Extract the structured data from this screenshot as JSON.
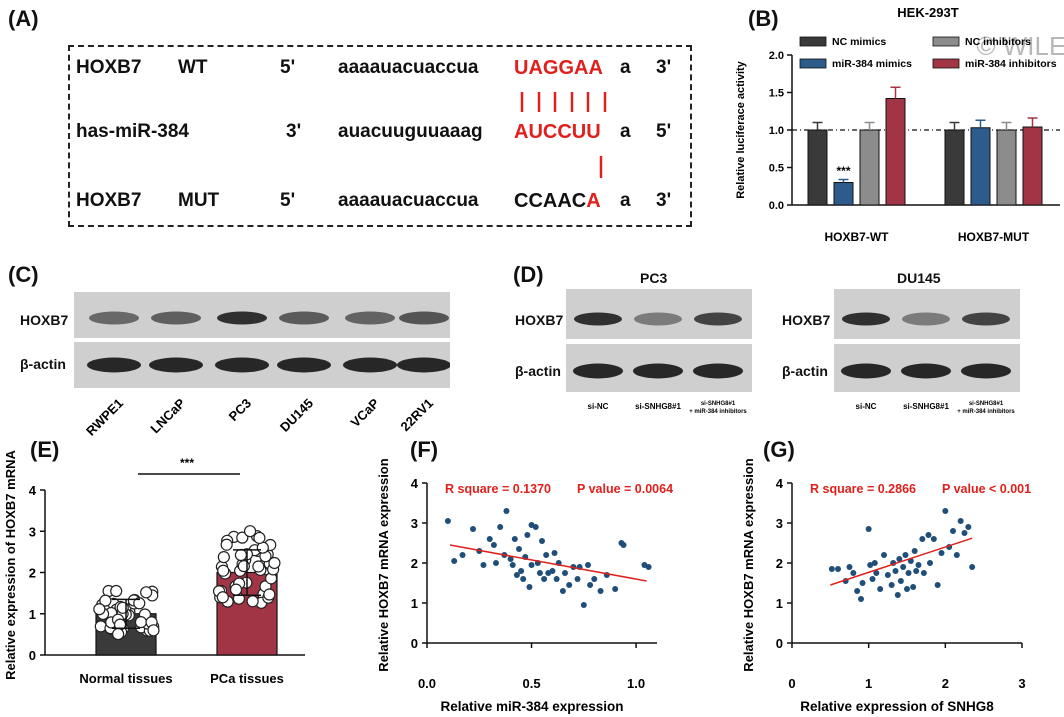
{
  "panels": {
    "A": "(A)",
    "B": "(B)",
    "C": "(C)",
    "D": "(D)",
    "E": "(E)",
    "F": "(F)",
    "G": "(G)"
  },
  "panelA": {
    "row1": {
      "name": "HOXB7",
      "variant": "WT",
      "end5": "5'",
      "seq": "aaaauacuaccua",
      "site": "UAGGAA",
      "tail": "a",
      "end3": "3'"
    },
    "row2": {
      "name": "has-miR-384",
      "end3": "3'",
      "seq": "auacuuguuaaag",
      "site": "AUCCUU",
      "tail": "a",
      "end5": "5'"
    },
    "row3": {
      "name": "HOXB7",
      "variant": "MUT",
      "end5": "5'",
      "seq": "aaaauacuaccua",
      "site_black": "CCAAC",
      "site_red": "A",
      "tail": "a",
      "end3": "3'"
    }
  },
  "panelB": {
    "watermark": "© WILEY",
    "chart_data": {
      "type": "bar",
      "title": "HEK-293T",
      "ylabel": "Relative luciferace activity",
      "ylim": [
        0,
        2.0
      ],
      "yticks": [
        "0.0",
        "0.5",
        "1.0",
        "1.5",
        "2.0"
      ],
      "categories": [
        "HOXB7-WT",
        "HOXB7-MUT"
      ],
      "series": [
        {
          "name": "NC mimics",
          "values": [
            1.0,
            1.0
          ],
          "errors": [
            0.1,
            0.1
          ],
          "color": "#3a3a3a"
        },
        {
          "name": "miR-384 mimics",
          "values": [
            0.3,
            1.03
          ],
          "errors": [
            0.04,
            0.1
          ],
          "color": "#2c5b8c"
        },
        {
          "name": "NC inhibitors",
          "values": [
            1.0,
            1.0
          ],
          "errors": [
            0.1,
            0.1
          ],
          "color": "#8c8c8c"
        },
        {
          "name": "miR-384 inhibitors",
          "values": [
            1.42,
            1.04
          ],
          "errors": [
            0.15,
            0.12
          ],
          "color": "#a13545"
        }
      ],
      "annotations": [
        "***"
      ],
      "reference_line": 1.0
    }
  },
  "panelC": {
    "rows": [
      "HOXB7",
      "β-actin"
    ],
    "lanes": [
      "RWPE1",
      "LNCaP",
      "PC3",
      "DU145",
      "VCaP",
      "22RV1"
    ]
  },
  "panelD": {
    "blots": [
      {
        "title": "PC3",
        "rows": [
          "HOXB7",
          "β-actin"
        ],
        "lanes": [
          "si-NC",
          "si-SNHG8#1",
          "si-SNHG8#1",
          "+ miR-384 inhibitors"
        ]
      },
      {
        "title": "DU145",
        "rows": [
          "HOXB7",
          "β-actin"
        ],
        "lanes": [
          "si-NC",
          "si-SNHG8#1",
          "si-SNHG8#1",
          "+ miR-384 inhibitors"
        ]
      }
    ]
  },
  "panelE": {
    "chart_data": {
      "type": "bar",
      "ylabel": "Relative expression of HOXB7 mRNA",
      "ylim": [
        0,
        4
      ],
      "yticks": [
        "0",
        "1",
        "2",
        "3",
        "4"
      ],
      "categories": [
        "Normal tissues",
        "PCa tissues"
      ],
      "values": [
        1.0,
        2.0
      ],
      "errors": [
        0.35,
        0.55
      ],
      "colors": [
        "#3a3a3a",
        "#a13545"
      ],
      "annotation": "***"
    }
  },
  "panelF": {
    "chart_data": {
      "type": "scatter",
      "xlabel": "Relative miR-384 expression",
      "ylabel": "Relative HOXB7 mRNA expression",
      "xlim": [
        0.0,
        1.1
      ],
      "ylim": [
        0,
        4
      ],
      "xticks": [
        "0.0",
        "0.5",
        "1.0"
      ],
      "yticks": [
        "0",
        "1",
        "2",
        "3",
        "4"
      ],
      "stat1": "R square = 0.1370",
      "stat2": "P value = 0.0064",
      "fit": [
        [
          0.11,
          2.45
        ],
        [
          1.05,
          1.55
        ]
      ],
      "points": [
        [
          0.1,
          3.05
        ],
        [
          0.13,
          2.05
        ],
        [
          0.17,
          2.2
        ],
        [
          0.22,
          2.85
        ],
        [
          0.25,
          2.3
        ],
        [
          0.27,
          1.95
        ],
        [
          0.3,
          2.6
        ],
        [
          0.32,
          2.45
        ],
        [
          0.33,
          2.0
        ],
        [
          0.35,
          2.9
        ],
        [
          0.37,
          2.2
        ],
        [
          0.38,
          3.3
        ],
        [
          0.4,
          2.1
        ],
        [
          0.41,
          1.95
        ],
        [
          0.42,
          2.6
        ],
        [
          0.43,
          1.7
        ],
        [
          0.44,
          2.35
        ],
        [
          0.45,
          1.8
        ],
        [
          0.46,
          1.6
        ],
        [
          0.47,
          2.15
        ],
        [
          0.48,
          2.7
        ],
        [
          0.49,
          1.4
        ],
        [
          0.5,
          2.95
        ],
        [
          0.5,
          1.95
        ],
        [
          0.52,
          2.9
        ],
        [
          0.53,
          2.0
        ],
        [
          0.54,
          1.75
        ],
        [
          0.55,
          2.55
        ],
        [
          0.56,
          1.6
        ],
        [
          0.57,
          2.2
        ],
        [
          0.58,
          1.75
        ],
        [
          0.6,
          1.8
        ],
        [
          0.61,
          2.25
        ],
        [
          0.62,
          1.6
        ],
        [
          0.63,
          2.0
        ],
        [
          0.65,
          1.3
        ],
        [
          0.66,
          1.75
        ],
        [
          0.68,
          1.45
        ],
        [
          0.7,
          1.9
        ],
        [
          0.72,
          1.6
        ],
        [
          0.73,
          1.9
        ],
        [
          0.75,
          0.95
        ],
        [
          0.77,
          1.95
        ],
        [
          0.78,
          1.45
        ],
        [
          0.8,
          1.6
        ],
        [
          0.83,
          1.3
        ],
        [
          0.86,
          1.7
        ],
        [
          0.9,
          1.35
        ],
        [
          0.93,
          2.5
        ],
        [
          0.94,
          2.45
        ],
        [
          1.04,
          1.95
        ],
        [
          1.06,
          1.9
        ]
      ]
    }
  },
  "panelG": {
    "chart_data": {
      "type": "scatter",
      "xlabel": "Relative expression of SNHG8",
      "ylabel": "Relative HOXB7 mRNA expression",
      "xlim": [
        0,
        3
      ],
      "ylim": [
        0,
        4
      ],
      "xticks": [
        "0",
        "1",
        "2",
        "3"
      ],
      "yticks": [
        "0",
        "1",
        "2",
        "3",
        "4"
      ],
      "stat1": "R square = 0.2866",
      "stat2": "P value < 0.001",
      "fit": [
        [
          0.5,
          1.45
        ],
        [
          2.35,
          2.62
        ]
      ],
      "points": [
        [
          0.52,
          1.85
        ],
        [
          0.6,
          1.85
        ],
        [
          0.7,
          1.55
        ],
        [
          0.75,
          1.9
        ],
        [
          0.8,
          1.75
        ],
        [
          0.85,
          1.3
        ],
        [
          0.9,
          1.1
        ],
        [
          0.92,
          1.5
        ],
        [
          1.0,
          2.85
        ],
        [
          1.02,
          1.95
        ],
        [
          1.05,
          1.6
        ],
        [
          1.08,
          2.0
        ],
        [
          1.1,
          1.75
        ],
        [
          1.15,
          1.35
        ],
        [
          1.2,
          2.2
        ],
        [
          1.25,
          1.7
        ],
        [
          1.3,
          1.45
        ],
        [
          1.32,
          2.0
        ],
        [
          1.35,
          1.8
        ],
        [
          1.38,
          1.2
        ],
        [
          1.4,
          2.1
        ],
        [
          1.42,
          1.55
        ],
        [
          1.45,
          1.9
        ],
        [
          1.48,
          2.2
        ],
        [
          1.5,
          1.35
        ],
        [
          1.52,
          1.75
        ],
        [
          1.55,
          2.05
        ],
        [
          1.58,
          1.4
        ],
        [
          1.6,
          2.3
        ],
        [
          1.62,
          1.8
        ],
        [
          1.65,
          1.95
        ],
        [
          1.7,
          2.6
        ],
        [
          1.72,
          1.75
        ],
        [
          1.78,
          2.7
        ],
        [
          1.8,
          2.0
        ],
        [
          1.85,
          2.6
        ],
        [
          1.9,
          1.45
        ],
        [
          1.95,
          2.25
        ],
        [
          2.0,
          3.3
        ],
        [
          2.05,
          2.4
        ],
        [
          2.1,
          2.8
        ],
        [
          2.15,
          2.2
        ],
        [
          2.2,
          3.05
        ],
        [
          2.25,
          2.75
        ],
        [
          2.3,
          2.9
        ],
        [
          2.35,
          1.9
        ]
      ]
    }
  }
}
